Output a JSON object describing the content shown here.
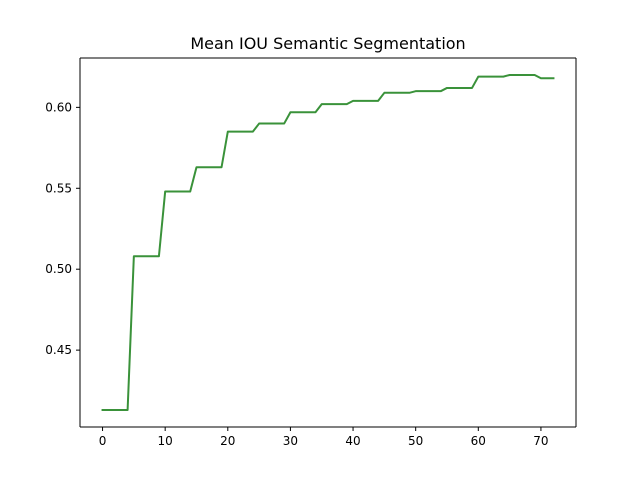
{
  "chart_data": {
    "type": "line",
    "title": "Mean IOU Semantic Segmentation",
    "xlabel": "",
    "ylabel": "",
    "xlim": [
      -3.6,
      75.6
    ],
    "ylim": [
      0.4025,
      0.6305
    ],
    "x_ticks": [
      0,
      10,
      20,
      30,
      40,
      50,
      60,
      70
    ],
    "y_ticks": [
      0.45,
      0.5,
      0.55,
      0.6
    ],
    "y_tick_labels": [
      "0.45",
      "0.50",
      "0.55",
      "0.60"
    ],
    "grid": false,
    "legend": "none",
    "series": [
      {
        "color": "#3a923a",
        "x": [
          0,
          4,
          5,
          9,
          10,
          14,
          15,
          19,
          20,
          24,
          25,
          29,
          30,
          34,
          35,
          39,
          40,
          44,
          45,
          49,
          50,
          54,
          55,
          59,
          60,
          64,
          65,
          69,
          70,
          72
        ],
        "y": [
          0.413,
          0.413,
          0.508,
          0.508,
          0.548,
          0.548,
          0.563,
          0.563,
          0.585,
          0.585,
          0.59,
          0.59,
          0.597,
          0.597,
          0.602,
          0.602,
          0.604,
          0.604,
          0.609,
          0.609,
          0.61,
          0.61,
          0.612,
          0.612,
          0.619,
          0.619,
          0.62,
          0.62,
          0.618,
          0.618
        ]
      }
    ]
  }
}
